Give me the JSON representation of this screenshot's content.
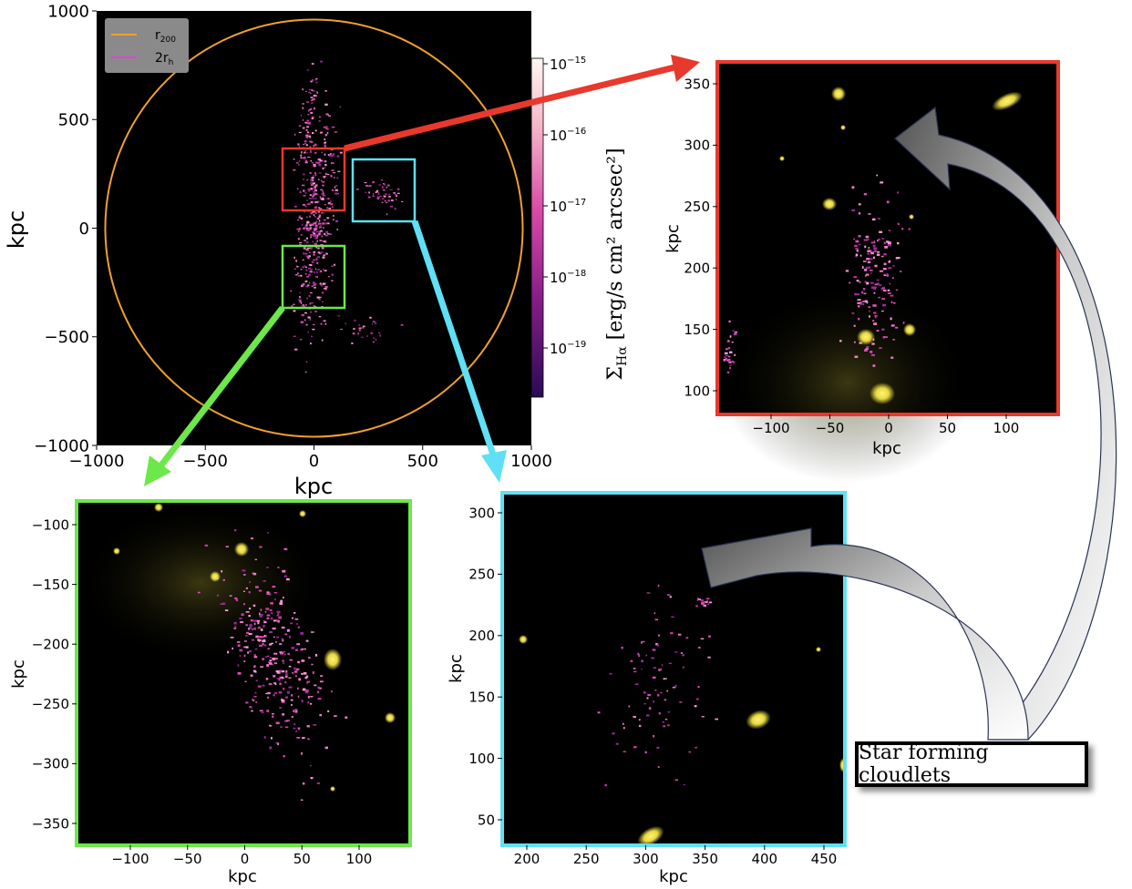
{
  "main_panel": {
    "xlabel": "kpc",
    "ylabel": "kpc",
    "xticks": [
      "−1000",
      "−500",
      "0",
      "500",
      "1000"
    ],
    "yticks": [
      "1000",
      "500",
      "0",
      "−500",
      "−1000"
    ],
    "legend": [
      {
        "label": "r",
        "sub": "200",
        "color": "#f0a030"
      },
      {
        "label": "2r",
        "sub": "h",
        "color": "#e040e0"
      }
    ],
    "colorbar": {
      "label_main": "Σ",
      "label_sub": "Hα",
      "label_rest": " [erg/s cm² arcsec²]",
      "ticks": [
        {
          "base": "10",
          "exp": "−15"
        },
        {
          "base": "10",
          "exp": "−16"
        },
        {
          "base": "10",
          "exp": "−17"
        },
        {
          "base": "10",
          "exp": "−18"
        },
        {
          "base": "10",
          "exp": "−19"
        }
      ]
    }
  },
  "zoom_red": {
    "xlabel": "kpc",
    "ylabel": "kpc",
    "xticks": [
      "−100",
      "−50",
      "0",
      "50",
      "100"
    ],
    "yticks": [
      "350",
      "300",
      "250",
      "200",
      "150",
      "100"
    ],
    "border_color": "#e8392c"
  },
  "zoom_green": {
    "xlabel": "kpc",
    "ylabel": "kpc",
    "xticks": [
      "−100",
      "−50",
      "0",
      "50",
      "100"
    ],
    "yticks": [
      "−100",
      "−150",
      "−200",
      "−250",
      "−300",
      "−350"
    ],
    "border_color": "#6ce84a"
  },
  "zoom_cyan": {
    "xlabel": "kpc",
    "ylabel": "kpc",
    "xticks": [
      "200",
      "250",
      "300",
      "350",
      "400",
      "450"
    ],
    "yticks": [
      "300",
      "250",
      "200",
      "150",
      "100",
      "50"
    ],
    "border_color": "#5fe0f4"
  },
  "callout": {
    "text": "Star forming cloudlets"
  }
}
